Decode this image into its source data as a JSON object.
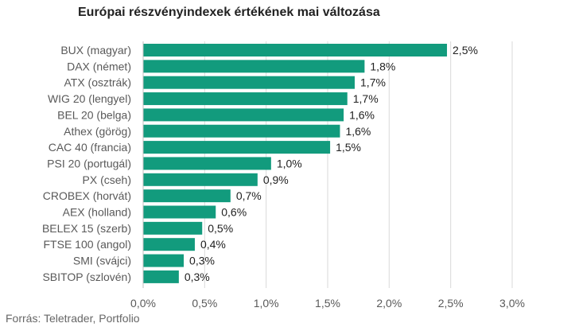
{
  "chart_data": {
    "type": "bar",
    "orientation": "horizontal",
    "title": "Európai részvényindexek értékének mai változása",
    "source": "Forrás: Teletrader, Portfolio",
    "categories": [
      "BUX (magyar)",
      "DAX (német)",
      "ATX (osztrák)",
      "WIG 20 (lengyel)",
      "BEL 20 (belga)",
      "Athex (görög)",
      "CAC 40 (francia)",
      "PSI 20 (portugál)",
      "PX (cseh)",
      "CROBEX (horvát)",
      "AEX (holland)",
      "BELEX 15 (szerb)",
      "FTSE 100 (angol)",
      "SMI (svájci)",
      "SBITOP (szlovén)"
    ],
    "values": [
      2.47,
      1.8,
      1.72,
      1.66,
      1.63,
      1.6,
      1.52,
      1.04,
      0.93,
      0.71,
      0.59,
      0.48,
      0.42,
      0.33,
      0.29
    ],
    "data_labels": [
      "2,5%",
      "1,8%",
      "1,7%",
      "1,7%",
      "1,6%",
      "1,6%",
      "1,5%",
      "1,0%",
      "0,9%",
      "0,7%",
      "0,6%",
      "0,5%",
      "0,4%",
      "0,3%",
      "0,3%"
    ],
    "xlim": [
      0,
      3.0
    ],
    "x_ticks": [
      0,
      0.5,
      1.0,
      1.5,
      2.0,
      2.5,
      3.0
    ],
    "x_tick_labels": [
      "0,0%",
      "0,5%",
      "1,0%",
      "1,5%",
      "2,0%",
      "2,5%",
      "3,0%"
    ],
    "xlabel": "",
    "ylabel": "",
    "grid": "vertical",
    "legend": "none",
    "colors": {
      "bar": "#129b7d",
      "grid": "#d9d9d9",
      "text": "#595959",
      "label": "#222222"
    }
  }
}
